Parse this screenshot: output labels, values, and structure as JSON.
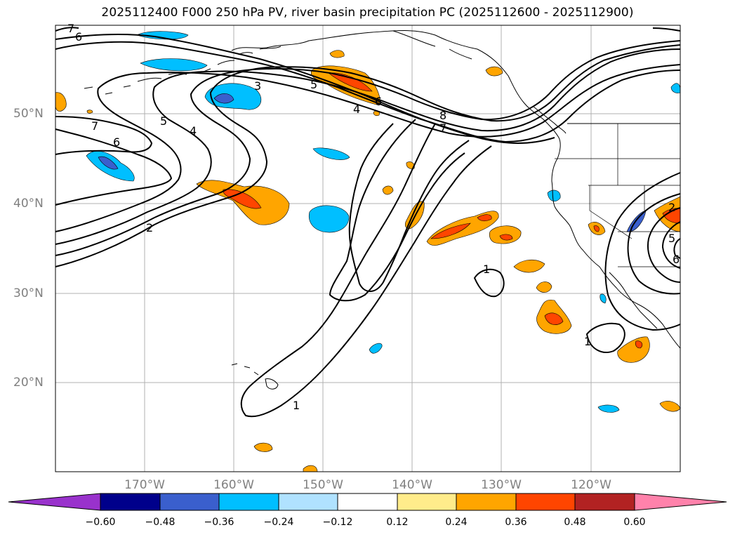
{
  "title": "2025112400 F000 250 hPa PV, river basin precipitation PC (2025112600 - 2025112900)",
  "latitude_labels": [
    "50°N",
    "40°N",
    "30°N",
    "20°N"
  ],
  "longitude_labels": [
    "170°W",
    "160°W",
    "150°W",
    "140°W",
    "130°W",
    "120°W"
  ],
  "colorbar": {
    "tick_labels": [
      "−0.60",
      "−0.48",
      "−0.36",
      "−0.24",
      "−0.12",
      "0.12",
      "0.24",
      "0.36",
      "0.48",
      "0.60"
    ],
    "colors": [
      "#9932cc",
      "#00008b",
      "#3a5fcd",
      "#00bfff",
      "#b0e2ff",
      "#ffffff",
      "#ffec8b",
      "#ffa500",
      "#ff4500",
      "#b22222",
      "#ff82ab"
    ]
  },
  "contour_labels": [
    "7",
    "6",
    "3",
    "5",
    "4",
    "6",
    "8",
    "7",
    "5",
    "4",
    "7",
    "6",
    "2",
    "1",
    "1",
    "1",
    "2",
    "5",
    "6"
  ],
  "colors": {
    "coast": "#000000",
    "contour": "#000000",
    "grid": "#b0b0b0",
    "tick_text": "#808080"
  }
}
